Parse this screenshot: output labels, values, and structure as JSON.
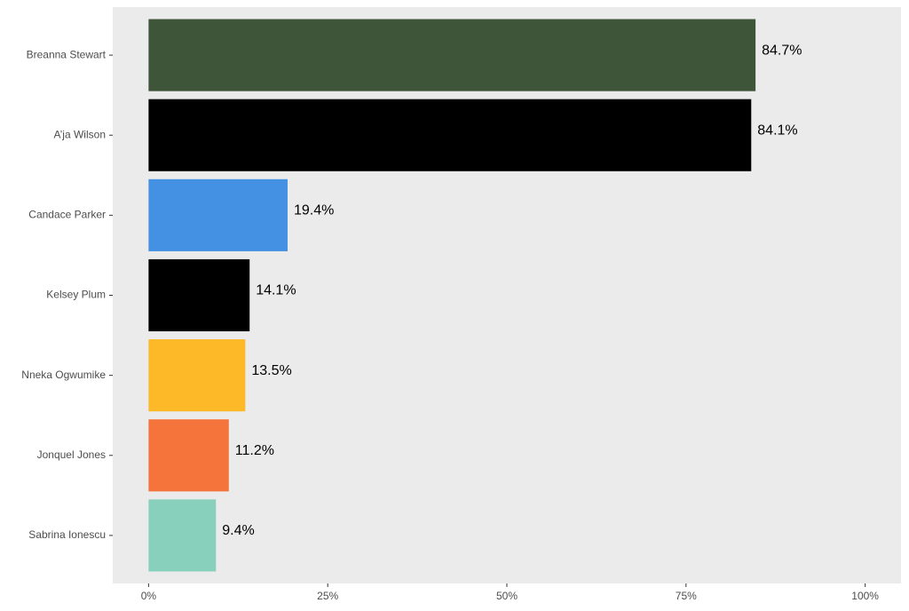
{
  "chart_data": {
    "type": "bar",
    "orientation": "horizontal",
    "categories": [
      "Breanna Stewart",
      "A’ja Wilson",
      "Candace Parker",
      "Kelsey Plum",
      "Nneka Ogwumike",
      "Jonquel Jones",
      "Sabrina Ionescu"
    ],
    "values": [
      84.7,
      84.1,
      19.4,
      14.1,
      13.5,
      11.2,
      9.4
    ],
    "value_labels": [
      "84.7%",
      "84.1%",
      "19.4%",
      "14.1%",
      "13.5%",
      "11.2%",
      "9.4%"
    ],
    "colors": [
      "#3e5539",
      "#000000",
      "#4490e2",
      "#000000",
      "#fdb927",
      "#f4743b",
      "#88d0bc"
    ],
    "xlim": [
      -5,
      105
    ],
    "xticks": [
      {
        "value": 0,
        "label": "0%"
      },
      {
        "value": 25,
        "label": "25%"
      },
      {
        "value": 50,
        "label": "50%"
      },
      {
        "value": 75,
        "label": "75%"
      },
      {
        "value": 100,
        "label": "100%"
      }
    ],
    "grid": false
  }
}
